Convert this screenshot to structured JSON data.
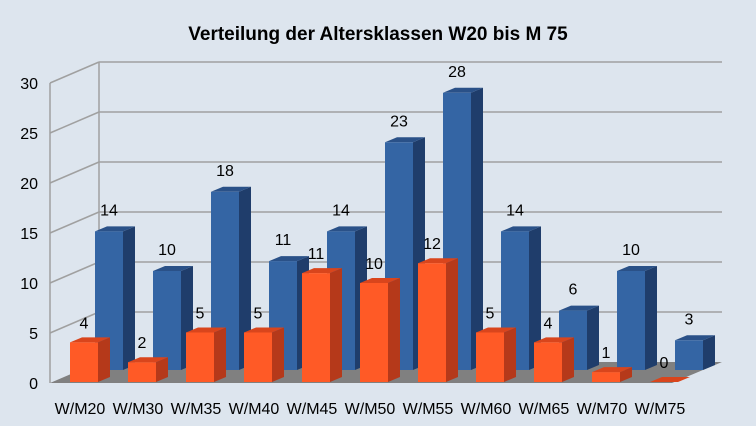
{
  "chart_data": {
    "type": "bar",
    "title": "Verteilung der Altersklassen W20 bis M 75",
    "categories": [
      "W/M20",
      "W/M30",
      "W/M35",
      "W/M40",
      "W/M45",
      "W/M50",
      "W/M55",
      "W/M60",
      "W/M65",
      "W/M70",
      "W/M75"
    ],
    "series": [
      {
        "values": [
          14,
          10,
          18,
          11,
          14,
          23,
          28,
          14,
          6,
          10,
          3
        ],
        "color": "#3465a4"
      },
      {
        "values": [
          4,
          2,
          5,
          5,
          11,
          10,
          12,
          5,
          4,
          1,
          0
        ],
        "color": "#ff5a26"
      }
    ],
    "ylim": [
      0,
      30
    ],
    "yticks": [
      0,
      5,
      10,
      15,
      20,
      25,
      30
    ],
    "grid": true,
    "style": "3d",
    "data_labels": true
  }
}
